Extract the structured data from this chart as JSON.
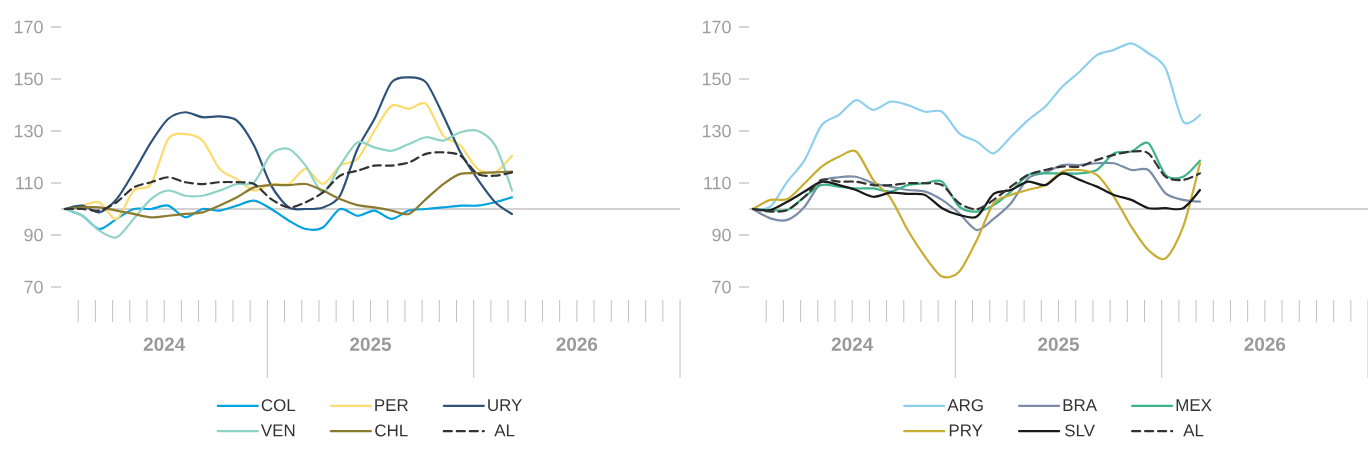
{
  "chart_data": [
    {
      "type": "line",
      "x": [
        "2024-01-08",
        "2024-02-08",
        "2024-03-08",
        "2024-04-08",
        "2024-05-08",
        "2024-06-08",
        "2024-07-08",
        "2024-08-08",
        "2024-09-08",
        "2024-10-08",
        "2024-11-08",
        "2024-12-08",
        "2025-01-08",
        "2025-02-08",
        "2025-03-08",
        "2025-04-08",
        "2025-05-08",
        "2025-06-08",
        "2025-07-08",
        "2025-08-08",
        "2025-09-08",
        "2025-10-08",
        "2025-11-08",
        "2025-12-08",
        "2026-01-08",
        "2026-02-08",
        "2026-03-08"
      ],
      "series": [
        {
          "name": "COL",
          "color": "#00a3e0",
          "values": [
            100,
            97.4,
            92.3,
            96.2,
            100,
            100,
            101.3,
            96.8,
            100,
            99.4,
            101.3,
            103.2,
            100,
            95.5,
            92.3,
            92.9,
            100,
            97.4,
            99.4,
            96.2,
            99.4,
            100,
            100.6,
            101.3,
            101.3,
            102.6,
            104.5
          ]
        },
        {
          "name": "PER",
          "color": "#fddb6d",
          "values": [
            100,
            101.3,
            102.6,
            96.2,
            107.1,
            109.6,
            126.9,
            128.8,
            126.3,
            115.4,
            111.5,
            107.1,
            109.6,
            109.6,
            115.4,
            109.6,
            116.7,
            119.2,
            130.1,
            139.7,
            138.5,
            140.4,
            128.2,
            124.4,
            115.4,
            114.1,
            120.5
          ]
        },
        {
          "name": "URY",
          "color": "#2f5278",
          "values": [
            100,
            101.3,
            98.7,
            103.8,
            114.1,
            125.6,
            134.6,
            137.2,
            135.3,
            135.6,
            134,
            124.4,
            109,
            100.6,
            100,
            100.6,
            105.1,
            123,
            134.6,
            148.7,
            150.6,
            148.7,
            135.9,
            121.8,
            111.5,
            102.6,
            98.1
          ]
        },
        {
          "name": "VEN",
          "color": "#8fd3c6",
          "values": [
            100,
            97.4,
            91.7,
            89.1,
            96.2,
            103.8,
            107.1,
            105.1,
            105.1,
            107.1,
            109.6,
            110.3,
            121.2,
            123.1,
            116.7,
            106.4,
            116.7,
            125.6,
            123.7,
            122.4,
            125,
            127.6,
            126.3,
            129.5,
            130.1,
            124.4,
            107.1
          ]
        },
        {
          "name": "CHL",
          "color": "#8c7a2e",
          "values": [
            100,
            100.6,
            100.6,
            99.4,
            98.1,
            96.8,
            97.4,
            98.1,
            98.7,
            101.3,
            104.5,
            108.3,
            109.2,
            109.2,
            109.6,
            107.1,
            103.8,
            101.5,
            100.6,
            99.4,
            98.1,
            103.8,
            109.6,
            113.5,
            113.8,
            114.1,
            114.4
          ]
        },
        {
          "name": "AL",
          "color": "#333333",
          "line_style": "dashed",
          "values": [
            100,
            100,
            99.4,
            102.6,
            108.3,
            110.3,
            112.2,
            110.3,
            109.6,
            110.3,
            110.3,
            109.6,
            103.8,
            100.6,
            102.6,
            106.4,
            112.8,
            114.7,
            116.7,
            116.7,
            117.9,
            121.2,
            121.8,
            120.5,
            113.5,
            112.8,
            114.1
          ]
        }
      ],
      "xlim": [
        "2024-01-01",
        "2027-01-01"
      ],
      "ylim": [
        70,
        170
      ],
      "yticks": [
        70,
        90,
        110,
        130,
        150,
        170
      ],
      "xticks": [
        {
          "value": "2024-07-01",
          "label": "2024"
        },
        {
          "value": "2025-07-01",
          "label": "2025"
        },
        {
          "value": "2026-07-01",
          "label": "2026"
        }
      ],
      "ref_lines": [
        {
          "axis": "y",
          "value": 100,
          "color": "#a6a6a6"
        }
      ],
      "legend": "bottom"
    },
    {
      "type": "line",
      "x": [
        "2024-01-08",
        "2024-02-08",
        "2024-03-08",
        "2024-04-08",
        "2024-05-08",
        "2024-06-08",
        "2024-07-08",
        "2024-08-08",
        "2024-09-08",
        "2024-10-08",
        "2024-11-08",
        "2024-12-08",
        "2025-01-08",
        "2025-02-08",
        "2025-03-08",
        "2025-04-08",
        "2025-05-08",
        "2025-06-08",
        "2025-07-08",
        "2025-08-08",
        "2025-09-08",
        "2025-10-08",
        "2025-11-08",
        "2025-12-08",
        "2026-01-08",
        "2026-02-08",
        "2026-03-08"
      ],
      "series": [
        {
          "name": "ARG",
          "color": "#8ecfef",
          "values": [
            100,
            100.9,
            110.5,
            118.8,
            132.3,
            136.2,
            141.9,
            138.1,
            141.3,
            140,
            137.4,
            137.4,
            129.1,
            125.9,
            121.4,
            127.8,
            134.2,
            139.4,
            147.1,
            152.8,
            159.2,
            161.2,
            163.7,
            159.9,
            154.1,
            133.6,
            136.2
          ]
        },
        {
          "name": "BRA",
          "color": "#7a8ca8",
          "values": [
            100,
            96.4,
            95.8,
            100.9,
            110.5,
            112.2,
            112.4,
            109.9,
            108.6,
            107.3,
            106.7,
            103.5,
            98.3,
            91.9,
            96.2,
            102.2,
            111.8,
            114,
            116.9,
            116.9,
            117.6,
            117.6,
            115,
            115,
            106,
            103.5,
            102.8
          ]
        },
        {
          "name": "MEX",
          "color": "#3db38a",
          "values": [
            100,
            99.6,
            99.6,
            104.7,
            109.2,
            108.6,
            107.9,
            107.9,
            106.7,
            109.2,
            109.9,
            110.5,
            100.9,
            99,
            101.5,
            106.7,
            113.1,
            113.7,
            113.7,
            113.7,
            115,
            121.4,
            122.1,
            125.3,
            113.1,
            112.4,
            118.6
          ]
        },
        {
          "name": "PRY",
          "color": "#c9ad30",
          "values": [
            100,
            103.5,
            103.8,
            109.9,
            116.3,
            120.1,
            122.1,
            111.2,
            104.2,
            91.9,
            81.7,
            74,
            75.9,
            88.1,
            102.2,
            105.4,
            107.4,
            109.2,
            114.4,
            115,
            113.1,
            104.7,
            93.2,
            84.2,
            81,
            93.2,
            117.6
          ]
        },
        {
          "name": "SLV",
          "color": "#1a1a1a",
          "values": [
            100,
            99.6,
            102.8,
            106.7,
            110.5,
            109.2,
            107.3,
            104.7,
            106.3,
            105.8,
            105.4,
            100.3,
            97.7,
            97.1,
            105.8,
            107.3,
            110.5,
            109.2,
            113.7,
            111.2,
            108.6,
            105.4,
            103.5,
            100.3,
            100.3,
            100.3,
            107.3
          ]
        },
        {
          "name": "AL",
          "color": "#333333",
          "line_style": "dashed",
          "values": [
            100,
            99,
            99.6,
            104.7,
            111.2,
            110.5,
            110.5,
            109.2,
            109.2,
            109.9,
            109.9,
            109.2,
            102.2,
            99.9,
            103.5,
            108.6,
            113.1,
            115,
            116.3,
            116.3,
            118.9,
            120.8,
            122.1,
            121.4,
            112.4,
            111.2,
            113.7
          ]
        }
      ],
      "xlim": [
        "2024-01-01",
        "2027-01-01"
      ],
      "ylim": [
        70,
        170
      ],
      "yticks": [
        70,
        90,
        110,
        130,
        150,
        170
      ],
      "xticks": [
        {
          "value": "2024-07-01",
          "label": "2024"
        },
        {
          "value": "2025-07-01",
          "label": "2025"
        },
        {
          "value": "2026-07-01",
          "label": "2026"
        }
      ],
      "ref_lines": [
        {
          "axis": "y",
          "value": 100,
          "color": "#a6a6a6"
        }
      ],
      "legend": "bottom"
    }
  ]
}
